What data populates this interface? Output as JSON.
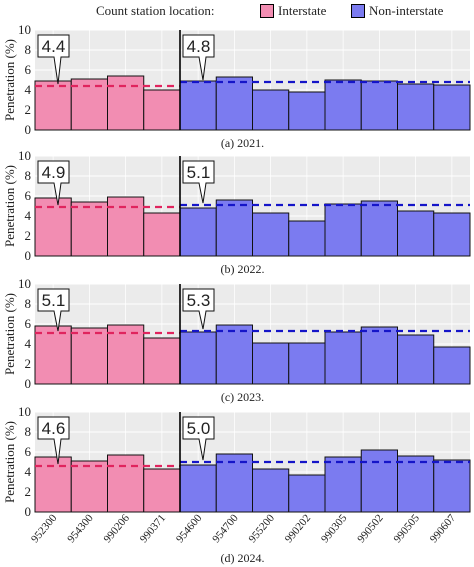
{
  "legend": {
    "title": "Count station location:",
    "items": [
      {
        "label": "Interstate",
        "color": "#f28db2"
      },
      {
        "label": "Non-interstate",
        "color": "#7b7bf0"
      }
    ]
  },
  "styles": {
    "interstate_fill": "#f28db2",
    "noninterstate_fill": "#7b7bf0",
    "interstate_mean_line": "#e0245e",
    "noninterstate_mean_line": "#1515c8"
  },
  "chart_data": [
    {
      "type": "bar",
      "caption": "(a) 2021.",
      "ylabel": "Penetration (%)",
      "ylim": [
        0,
        10
      ],
      "yticks": [
        0,
        2,
        4,
        6,
        8,
        10
      ],
      "grid": true,
      "categories": [
        "952300",
        "954300",
        "990206",
        "990371",
        "954600",
        "954700",
        "955200",
        "990202",
        "990305",
        "990502",
        "990505",
        "990607"
      ],
      "groups": [
        "Interstate",
        "Interstate",
        "Interstate",
        "Interstate",
        "Non-interstate",
        "Non-interstate",
        "Non-interstate",
        "Non-interstate",
        "Non-interstate",
        "Non-interstate",
        "Non-interstate",
        "Non-interstate"
      ],
      "values": [
        4.9,
        5.1,
        5.4,
        4.0,
        4.9,
        5.3,
        4.0,
        3.8,
        5.0,
        4.9,
        4.6,
        4.5
      ],
      "annotations": [
        {
          "group": "Interstate",
          "label": "4.4",
          "value": 4.4
        },
        {
          "group": "Non-interstate",
          "label": "4.8",
          "value": 4.8
        }
      ]
    },
    {
      "type": "bar",
      "caption": "(b) 2022.",
      "ylabel": "Penetration (%)",
      "ylim": [
        0,
        10
      ],
      "yticks": [
        0,
        2,
        4,
        6,
        8,
        10
      ],
      "grid": true,
      "categories": [
        "952300",
        "954300",
        "990206",
        "990371",
        "954600",
        "954700",
        "955200",
        "990202",
        "990305",
        "990502",
        "990505",
        "990607"
      ],
      "groups": [
        "Interstate",
        "Interstate",
        "Interstate",
        "Interstate",
        "Non-interstate",
        "Non-interstate",
        "Non-interstate",
        "Non-interstate",
        "Non-interstate",
        "Non-interstate",
        "Non-interstate",
        "Non-interstate"
      ],
      "values": [
        5.8,
        5.4,
        5.9,
        4.3,
        4.8,
        5.6,
        4.3,
        3.5,
        5.2,
        5.5,
        4.5,
        4.3
      ],
      "annotations": [
        {
          "group": "Interstate",
          "label": "4.9",
          "value": 4.9
        },
        {
          "group": "Non-interstate",
          "label": "5.1",
          "value": 5.1
        }
      ]
    },
    {
      "type": "bar",
      "caption": "(c) 2023.",
      "ylabel": "Penetration (%)",
      "ylim": [
        0,
        10
      ],
      "yticks": [
        0,
        2,
        4,
        6,
        8,
        10
      ],
      "grid": true,
      "categories": [
        "952300",
        "954300",
        "990206",
        "990371",
        "954600",
        "954700",
        "955200",
        "990202",
        "990305",
        "990502",
        "990505",
        "990607"
      ],
      "groups": [
        "Interstate",
        "Interstate",
        "Interstate",
        "Interstate",
        "Non-interstate",
        "Non-interstate",
        "Non-interstate",
        "Non-interstate",
        "Non-interstate",
        "Non-interstate",
        "Non-interstate",
        "Non-interstate"
      ],
      "values": [
        5.8,
        5.6,
        5.9,
        4.6,
        5.2,
        5.9,
        4.1,
        4.1,
        5.2,
        5.7,
        4.9,
        3.7
      ],
      "annotations": [
        {
          "group": "Interstate",
          "label": "5.1",
          "value": 5.1
        },
        {
          "group": "Non-interstate",
          "label": "5.3",
          "value": 5.3
        }
      ]
    },
    {
      "type": "bar",
      "caption": "(d) 2024.",
      "ylabel": "Penetration (%)",
      "ylim": [
        0,
        10
      ],
      "yticks": [
        0,
        2,
        4,
        6,
        8,
        10
      ],
      "grid": true,
      "show_xticks": true,
      "categories": [
        "952300",
        "954300",
        "990206",
        "990371",
        "954600",
        "954700",
        "955200",
        "990202",
        "990305",
        "990502",
        "990505",
        "990607"
      ],
      "groups": [
        "Interstate",
        "Interstate",
        "Interstate",
        "Interstate",
        "Non-interstate",
        "Non-interstate",
        "Non-interstate",
        "Non-interstate",
        "Non-interstate",
        "Non-interstate",
        "Non-interstate",
        "Non-interstate"
      ],
      "values": [
        5.5,
        5.1,
        5.7,
        4.3,
        4.7,
        5.8,
        4.3,
        3.7,
        5.5,
        6.2,
        5.6,
        5.2
      ],
      "annotations": [
        {
          "group": "Interstate",
          "label": "4.6",
          "value": 4.6
        },
        {
          "group": "Non-interstate",
          "label": "5.0",
          "value": 5.0
        }
      ]
    }
  ]
}
